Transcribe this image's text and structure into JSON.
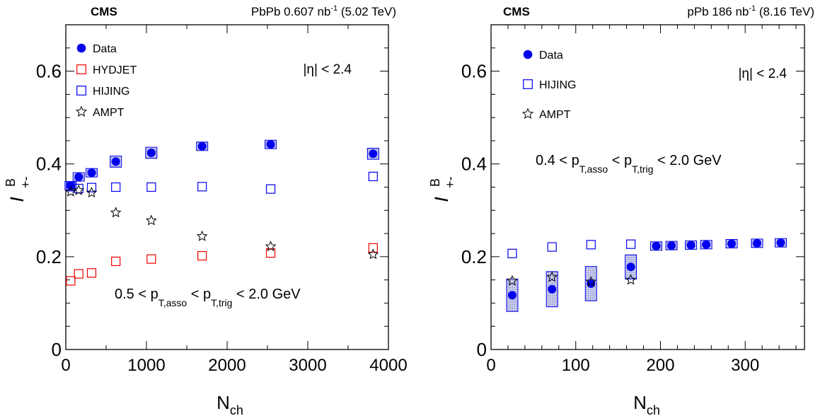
{
  "chart_data": [
    {
      "type": "scatter",
      "experiment": "CMS",
      "system_label": "PbPb 0.607 nb",
      "system_sup": "-1",
      "energy": "(5.02 TeV)",
      "xlabel": "N",
      "xlabel_sub": "ch",
      "ylabel": "I",
      "ylabel_sup": "B",
      "ylabel_sub": "+-",
      "xlim": [
        0,
        4000
      ],
      "ylim": [
        0,
        0.7
      ],
      "x_ticks": [
        0,
        1000,
        2000,
        3000,
        4000
      ],
      "x_tick_labels": [
        "0",
        "1000",
        "2000",
        "3000",
        "4000"
      ],
      "y_ticks": [
        0,
        0.2,
        0.4,
        0.6
      ],
      "y_tick_labels": [
        "0",
        "0.2",
        "0.4",
        "0.6"
      ],
      "grid": false,
      "legend_position": "top-left",
      "eta_text": "|η| < 2.4",
      "pt_text": {
        "a": "0.5 < p",
        "s1": "T,asso",
        "b": " < p",
        "s2": "T,trig",
        "c": " < 2.0 GeV"
      },
      "series": [
        {
          "name": "Data",
          "marker": "circle",
          "color": "#0000ee",
          "x": [
            60,
            160,
            320,
            620,
            1060,
            1690,
            2540,
            3810
          ],
          "y": [
            0.353,
            0.372,
            0.381,
            0.405,
            0.424,
            0.438,
            0.442,
            0.422
          ],
          "syst": [
            0.008,
            0.009,
            0.008,
            0.012,
            0.012,
            0.008,
            0.007,
            0.012
          ]
        },
        {
          "name": "HYDJET",
          "marker": "open-square",
          "color": "#ee0000",
          "x": [
            60,
            160,
            320,
            620,
            1060,
            1690,
            2540,
            3810
          ],
          "y": [
            0.148,
            0.163,
            0.165,
            0.19,
            0.195,
            0.202,
            0.208,
            0.219
          ]
        },
        {
          "name": "HIJING",
          "marker": "open-square",
          "color": "#0000ee",
          "x": [
            60,
            160,
            320,
            620,
            1060,
            1690,
            2540,
            3810
          ],
          "y": [
            0.351,
            0.347,
            0.349,
            0.35,
            0.35,
            0.351,
            0.346,
            0.373
          ]
        },
        {
          "name": "AMPT",
          "marker": "open-star",
          "color": "#000000",
          "x": [
            60,
            160,
            320,
            620,
            1060,
            1690,
            2540,
            3810
          ],
          "y": [
            0.34,
            0.343,
            0.338,
            0.295,
            0.278,
            0.244,
            0.222,
            0.205
          ]
        }
      ]
    },
    {
      "type": "scatter",
      "experiment": "CMS",
      "system_label": "pPb 186 nb",
      "system_sup": "-1",
      "energy": "(8.16 TeV)",
      "xlabel": "N",
      "xlabel_sub": "ch",
      "ylabel": "I",
      "ylabel_sup": "B",
      "ylabel_sub": "+-",
      "xlim": [
        0,
        370
      ],
      "ylim": [
        0,
        0.7
      ],
      "x_ticks": [
        0,
        100,
        200,
        300
      ],
      "x_tick_labels": [
        "0",
        "100",
        "200",
        "300"
      ],
      "y_ticks": [
        0,
        0.2,
        0.4,
        0.6
      ],
      "y_tick_labels": [
        "0",
        "0.2",
        "0.4",
        "0.6"
      ],
      "grid": false,
      "legend_position": "top-left",
      "eta_text": "|η| < 2.4",
      "pt_text": {
        "a": "0.4 < p",
        "s1": "T,asso",
        "b": " < p",
        "s2": "T,trig",
        "c": " < 2.0 GeV"
      },
      "series": [
        {
          "name": "Data",
          "marker": "circle",
          "color": "#0000ee",
          "x": [
            25,
            72,
            118,
            165,
            195,
            213,
            236,
            254,
            284,
            314,
            342
          ],
          "y": [
            0.117,
            0.13,
            0.142,
            0.178,
            0.223,
            0.224,
            0.225,
            0.226,
            0.228,
            0.229,
            0.23
          ],
          "syst": [
            0.035,
            0.038,
            0.037,
            0.026,
            0.007,
            0.007,
            0.007,
            0.007,
            0.006,
            0.006,
            0.006
          ]
        },
        {
          "name": "HIJING",
          "marker": "open-square",
          "color": "#0000ee",
          "x": [
            25,
            72,
            118,
            165
          ],
          "y": [
            0.207,
            0.221,
            0.226,
            0.227
          ]
        },
        {
          "name": "AMPT",
          "marker": "open-star",
          "color": "#000000",
          "x": [
            25,
            72,
            118,
            165
          ],
          "y": [
            0.148,
            0.156,
            0.146,
            0.15
          ]
        }
      ]
    }
  ]
}
